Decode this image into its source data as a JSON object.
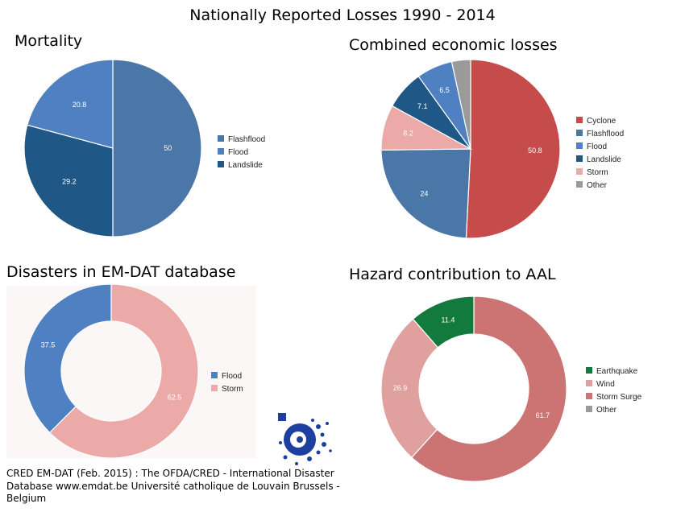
{
  "title": "Nationally Reported Losses 1990 - 2014",
  "panels": {
    "mortality": "Mortality",
    "economic": "Combined economic losses",
    "disasters": "Disasters in EM-DAT database",
    "hazard": "Hazard contribution to AAL"
  },
  "source": "CRED EM-DAT (Feb. 2015) : The OFDA/CRED - International Disaster Database www.emdat.be Université catholique de Louvain Brussels - Belgium",
  "chart_data": [
    {
      "type": "pie",
      "title": "Mortality",
      "series": [
        {
          "name": "Flashflood",
          "value": 50,
          "label": "50",
          "color": "#4a77a8"
        },
        {
          "name": "Flood",
          "value": 20.8,
          "label": "20.8",
          "color": "#4f81c2"
        },
        {
          "name": "Landslide",
          "value": 29.2,
          "label": "29.2",
          "color": "#1f5886"
        }
      ],
      "slice_order": [
        0,
        2,
        1
      ],
      "legend_position": "right"
    },
    {
      "type": "pie",
      "title": "Combined economic losses",
      "series": [
        {
          "name": "Cyclone",
          "value": 50.8,
          "label": "50.8",
          "color": "#c64b4b"
        },
        {
          "name": "Flashflood",
          "value": 24,
          "label": "24",
          "color": "#4a77a8"
        },
        {
          "name": "Flood",
          "value": 6.5,
          "label": "6.5",
          "color": "#4f81c2"
        },
        {
          "name": "Landslide",
          "value": 7.1,
          "label": "7.1",
          "color": "#1f5886"
        },
        {
          "name": "Storm",
          "value": 8.2,
          "label": "8.2",
          "color": "#eba9a7"
        },
        {
          "name": "Other",
          "value": 3.4,
          "label": "",
          "color": "#9a9a9a"
        }
      ],
      "slice_order": [
        0,
        1,
        4,
        3,
        2,
        5
      ],
      "legend_position": "right"
    },
    {
      "type": "donut",
      "title": "Disasters in EM-DAT database",
      "series": [
        {
          "name": "Flood",
          "value": 37.5,
          "label": "37.5",
          "color": "#4f81c2"
        },
        {
          "name": "Storm",
          "value": 62.5,
          "label": "62.5",
          "color": "#eba9a7"
        }
      ],
      "slice_order": [
        1,
        0
      ],
      "legend_position": "right"
    },
    {
      "type": "donut",
      "title": "Hazard contribution to AAL",
      "series": [
        {
          "name": "Earthquake",
          "value": 11.4,
          "label": "11.4",
          "color": "#137a3d"
        },
        {
          "name": "Wind",
          "value": 26.9,
          "label": "26.9",
          "color": "#e0a09e"
        },
        {
          "name": "Storm Surge",
          "value": 61.7,
          "label": "61.7",
          "color": "#cc7373"
        },
        {
          "name": "Other",
          "value": 0,
          "label": "",
          "color": "#9a9a9a"
        }
      ],
      "slice_order": [
        2,
        1,
        0
      ],
      "legend_position": "right"
    }
  ]
}
